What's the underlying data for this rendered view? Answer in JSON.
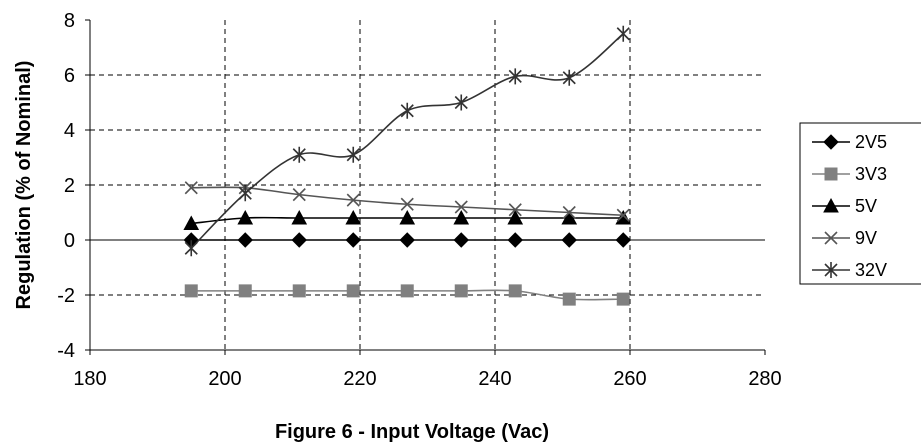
{
  "chart_data": {
    "type": "line",
    "title": "",
    "xlabel": "Figure 6 - Input Voltage (Vac)",
    "ylabel": "Regulation (% of Nominal)",
    "xlim": [
      180,
      280
    ],
    "ylim": [
      -4,
      8
    ],
    "xticks": [
      180,
      200,
      220,
      240,
      260,
      280
    ],
    "yticks": [
      -4,
      -2,
      0,
      2,
      4,
      6,
      8
    ],
    "grid": true,
    "legend_position": "right",
    "x": [
      195,
      203,
      211,
      219,
      227,
      235,
      243,
      251,
      259
    ],
    "series": [
      {
        "name": "2V5",
        "marker": "diamond",
        "color": "#000000",
        "values": [
          0,
          0,
          0,
          0,
          0,
          0,
          0,
          0,
          0
        ]
      },
      {
        "name": "3V3",
        "marker": "square",
        "color": "#808080",
        "values": [
          -1.85,
          -1.85,
          -1.85,
          -1.85,
          -1.85,
          -1.85,
          -1.85,
          -2.15,
          -2.15
        ]
      },
      {
        "name": "5V",
        "marker": "triangle",
        "color": "#000000",
        "values": [
          0.6,
          0.8,
          0.8,
          0.8,
          0.8,
          0.8,
          0.8,
          0.8,
          0.8
        ]
      },
      {
        "name": "9V",
        "marker": "x",
        "color": "#555555",
        "values": [
          1.9,
          1.9,
          1.65,
          1.45,
          1.3,
          1.2,
          1.1,
          1.0,
          0.9
        ]
      },
      {
        "name": "32V",
        "marker": "star",
        "color": "#333333",
        "values": [
          -0.3,
          1.7,
          3.1,
          3.1,
          4.7,
          5.0,
          5.95,
          5.9,
          7.5
        ]
      }
    ]
  }
}
